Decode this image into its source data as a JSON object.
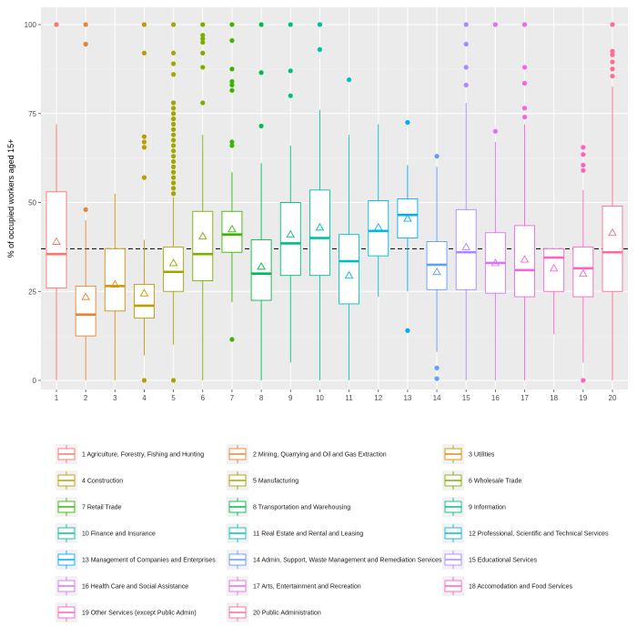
{
  "chart_data": {
    "type": "boxplot",
    "ylabel": "% of occupied workers aged 15+",
    "xlabel": "",
    "ylim": [
      0,
      100
    ],
    "yticks": [
      0,
      25,
      50,
      75,
      100
    ],
    "grid": true,
    "background": "#ebebeb",
    "reference_line": {
      "y": 37,
      "style": "dashed",
      "color": "#000000"
    },
    "mean_marker": "triangle",
    "legend_placement": "bottom",
    "legend_columns": 3,
    "categories": [
      "1",
      "2",
      "3",
      "4",
      "5",
      "6",
      "7",
      "8",
      "9",
      "10",
      "11",
      "12",
      "13",
      "14",
      "15",
      "16",
      "17",
      "18",
      "19",
      "20"
    ],
    "series": [
      {
        "label": "1",
        "name": "1 Agriculture, Forestry, Fishing and Hunting",
        "color": "#F8766D",
        "min": 0,
        "q1": 26,
        "median": 35.5,
        "q3": 53,
        "max": 72,
        "mean": 39,
        "outliers": [
          100
        ]
      },
      {
        "label": "2",
        "name": "2 Mining, Quarrying and Oil and Gas Extraction",
        "color": "#EA8331",
        "min": 0,
        "q1": 12.5,
        "median": 18.5,
        "q3": 26.5,
        "max": 45,
        "mean": 23.5,
        "outliers": [
          48,
          94.5,
          100
        ]
      },
      {
        "label": "3",
        "name": "3 Utilities",
        "color": "#D89000",
        "min": 0,
        "q1": 19.5,
        "median": 26.5,
        "q3": 37,
        "max": 52.5,
        "mean": 27,
        "outliers": []
      },
      {
        "label": "4",
        "name": "4 Construction",
        "color": "#C09B00",
        "min": 7,
        "q1": 17.5,
        "median": 21,
        "q3": 27,
        "max": 39.5,
        "mean": 24.5,
        "outliers": [
          0,
          57,
          65.5,
          67,
          68.5,
          92,
          100
        ]
      },
      {
        "label": "5",
        "name": "5 Manufacturing",
        "color": "#A3A500",
        "min": 10,
        "q1": 25,
        "median": 30.5,
        "q3": 37.5,
        "max": 51.5,
        "mean": 33,
        "outliers": [
          0,
          52.5,
          54,
          55.5,
          57,
          58.5,
          60,
          61.5,
          63,
          64.5,
          66,
          67.5,
          69,
          70.5,
          72,
          73.5,
          75,
          76.5,
          78,
          86,
          89,
          92,
          100
        ]
      },
      {
        "label": "6",
        "name": "6 Wholesale Trade",
        "color": "#7CAE00",
        "min": 0,
        "q1": 28,
        "median": 35.5,
        "q3": 47.5,
        "max": 69,
        "mean": 40.5,
        "outliers": [
          78,
          88,
          92,
          95,
          96,
          97,
          100
        ]
      },
      {
        "label": "7",
        "name": "7 Retail Trade",
        "color": "#39B600",
        "min": 22,
        "q1": 36,
        "median": 41,
        "q3": 47.5,
        "max": 58.5,
        "mean": 42.5,
        "outliers": [
          11.5,
          66,
          67,
          81.5,
          83,
          84,
          87.5,
          95.5,
          100
        ]
      },
      {
        "label": "8",
        "name": "8 Transportation and Warehousing",
        "color": "#00BB4E",
        "min": 0,
        "q1": 22.5,
        "median": 30,
        "q3": 39.5,
        "max": 61,
        "mean": 32,
        "outliers": [
          71.5,
          86.5,
          100
        ]
      },
      {
        "label": "9",
        "name": "9 Information",
        "color": "#00BF7D",
        "min": 5,
        "q1": 29.5,
        "median": 38.5,
        "q3": 50,
        "max": 66,
        "mean": 41,
        "outliers": [
          80,
          87,
          100
        ]
      },
      {
        "label": "10",
        "name": "10 Finance and Insurance",
        "color": "#00C1A3",
        "min": 0,
        "q1": 29.5,
        "median": 40,
        "q3": 53.5,
        "max": 76,
        "mean": 43,
        "outliers": [
          93,
          100
        ]
      },
      {
        "label": "11",
        "name": "11 Real Estate and Rental and Leasing",
        "color": "#00BFC4",
        "min": 0,
        "q1": 21.5,
        "median": 33.5,
        "q3": 41,
        "max": 69,
        "mean": 29.5,
        "outliers": [
          84.5
        ]
      },
      {
        "label": "12",
        "name": "12 Professional, Scientific and Technical Services",
        "color": "#00B9E3",
        "min": 23.5,
        "q1": 35,
        "median": 42,
        "q3": 50.5,
        "max": 72,
        "mean": 43,
        "outliers": []
      },
      {
        "label": "13",
        "name": "13 Management of Companies and Enterprises",
        "color": "#00ADFA",
        "min": 25,
        "q1": 40,
        "median": 46.5,
        "q3": 51,
        "max": 60.5,
        "mean": 45.5,
        "outliers": [
          14,
          72.5
        ]
      },
      {
        "label": "14",
        "name": "14 Admin, Support, Waste Management and Remediation Services",
        "color": "#619CFF",
        "min": 8,
        "q1": 25.5,
        "median": 32.5,
        "q3": 39,
        "max": 60,
        "mean": 30.5,
        "outliers": [
          0.5,
          3.5,
          63
        ]
      },
      {
        "label": "15",
        "name": "15 Educational Services",
        "color": "#AE87FF",
        "min": 0,
        "q1": 25.5,
        "median": 36,
        "q3": 48,
        "max": 78,
        "mean": 37.5,
        "outliers": [
          83,
          88,
          94.5,
          100
        ]
      },
      {
        "label": "16",
        "name": "16 Health Care and Social Assistance",
        "color": "#DB72FB",
        "min": 0,
        "q1": 24.5,
        "median": 33,
        "q3": 41.5,
        "max": 67,
        "mean": 33,
        "outliers": [
          70,
          100
        ]
      },
      {
        "label": "17",
        "name": "17 Arts, Entertainment and Recreation",
        "color": "#F564E3",
        "min": 0,
        "q1": 23.5,
        "median": 31,
        "q3": 43.5,
        "max": 72,
        "mean": 34,
        "outliers": [
          74,
          76.5,
          83.5,
          88,
          100
        ]
      },
      {
        "label": "18",
        "name": "18 Accomodation and Food Services",
        "color": "#FF61C3",
        "min": 13,
        "q1": 25,
        "median": 34.5,
        "q3": 37,
        "max": 37,
        "mean": 31.5,
        "outliers": []
      },
      {
        "label": "19",
        "name": "19 Other Services (except Public Admin)",
        "color": "#FF62BC",
        "min": 5,
        "q1": 23.5,
        "median": 31.5,
        "q3": 37.5,
        "max": 53.5,
        "mean": 30,
        "outliers": [
          0,
          59,
          60.5,
          63.5,
          65.5
        ]
      },
      {
        "label": "20",
        "name": "20 Public Administration",
        "color": "#FF6C91",
        "min": 0,
        "q1": 25,
        "median": 36,
        "q3": 49,
        "max": 82.5,
        "mean": 41.5,
        "outliers": [
          85.5,
          87.5,
          89.5,
          91.5,
          92.5,
          100
        ]
      }
    ]
  }
}
